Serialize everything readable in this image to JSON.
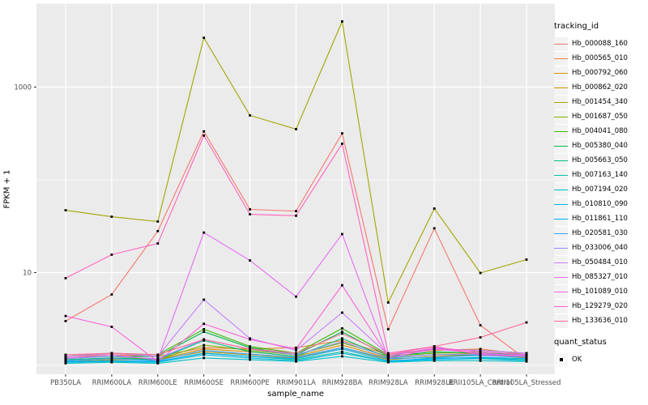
{
  "chart": {
    "x_axis_title": "sample_name",
    "y_axis_title": "FPKM + 1",
    "panel_bg": "#EBEBEB",
    "grid_color": "#FFFFFF",
    "tick_label_color": "#4D4D4D",
    "point_color": "#000000",
    "point_shape": "filled-square"
  },
  "legend": {
    "tracking_title": "tracking_id",
    "quant_title": "quant_status",
    "quant_items": [
      {
        "label": "OK"
      }
    ],
    "key_bg": "#F2F2F2"
  },
  "chart_data": {
    "type": "line",
    "title": "",
    "xlabel": "sample_name",
    "ylabel": "FPKM + 1",
    "y_scale": "log10",
    "ylim": [
      1.0,
      6000
    ],
    "y_major_breaks": [
      10,
      1000
    ],
    "y_minor_breaks": [
      1,
      100
    ],
    "grid": true,
    "legend_position": "right",
    "categories": [
      "PB350LA",
      "RRIM600LA",
      "RRIM600LE",
      "RRIM600SE",
      "RRIM600PE",
      "RRIM901LA",
      "RRIM928BA",
      "RRIM928LA",
      "RRIM928LE",
      "RRII105LA_Control",
      "RRII105LA_Stressed"
    ],
    "series": [
      {
        "name": "Hb_000088_160",
        "color": "#F8766D",
        "values": [
          3.0,
          5.8,
          28,
          333,
          48,
          46,
          317,
          2.45,
          30,
          2.7,
          1.15
        ]
      },
      {
        "name": "Hb_000565_010",
        "color": "#EB8335",
        "values": [
          1.25,
          1.3,
          1.25,
          1.55,
          1.5,
          1.55,
          1.85,
          1.3,
          1.45,
          1.5,
          1.3
        ]
      },
      {
        "name": "Hb_000792_060",
        "color": "#D89000",
        "values": [
          1.15,
          1.2,
          1.15,
          1.5,
          1.4,
          1.25,
          1.65,
          1.2,
          1.3,
          1.35,
          1.25
        ]
      },
      {
        "name": "Hb_000862_020",
        "color": "#C09B00",
        "values": [
          1.1,
          1.15,
          1.15,
          1.4,
          1.3,
          1.2,
          1.55,
          1.15,
          1.25,
          1.3,
          1.2
        ]
      },
      {
        "name": "Hb_001454_340",
        "color": "#A3A500",
        "values": [
          47,
          40,
          35.5,
          3400,
          495,
          352,
          5100,
          4.75,
          49,
          9.9,
          13.8
        ]
      },
      {
        "name": "Hb_001687_050",
        "color": "#7CAE00",
        "values": [
          1.2,
          1.25,
          1.15,
          1.65,
          1.45,
          1.3,
          1.75,
          1.25,
          1.35,
          1.4,
          1.3
        ]
      },
      {
        "name": "Hb_004041_080",
        "color": "#39B600",
        "values": [
          1.25,
          1.35,
          1.3,
          2.45,
          1.6,
          1.35,
          2.5,
          1.3,
          1.5,
          1.45,
          1.35
        ]
      },
      {
        "name": "Hb_005380_040",
        "color": "#00BB4E",
        "values": [
          1.2,
          1.25,
          1.25,
          2.3,
          1.55,
          1.3,
          2.3,
          1.25,
          1.4,
          1.35,
          1.3
        ]
      },
      {
        "name": "Hb_005663_050",
        "color": "#00BF7D",
        "values": [
          1.15,
          1.2,
          1.15,
          1.85,
          1.4,
          1.25,
          1.95,
          1.2,
          1.3,
          1.3,
          1.25
        ]
      },
      {
        "name": "Hb_007163_140",
        "color": "#00C1A3",
        "values": [
          1.1,
          1.1,
          1.1,
          1.35,
          1.25,
          1.15,
          1.4,
          1.1,
          1.2,
          1.2,
          1.15
        ]
      },
      {
        "name": "Hb_007194_020",
        "color": "#00BFC4",
        "values": [
          1.05,
          1.08,
          1.05,
          1.2,
          1.15,
          1.1,
          1.25,
          1.08,
          1.12,
          1.12,
          1.1
        ]
      },
      {
        "name": "Hb_010810_090",
        "color": "#00BAE0",
        "values": [
          1.08,
          1.1,
          1.08,
          1.3,
          1.2,
          1.12,
          1.35,
          1.1,
          1.15,
          1.18,
          1.12
        ]
      },
      {
        "name": "Hb_011861_110",
        "color": "#00B0F6",
        "values": [
          1.1,
          1.12,
          1.1,
          1.35,
          1.25,
          1.18,
          1.5,
          1.12,
          1.18,
          1.22,
          1.18
        ]
      },
      {
        "name": "Hb_020581_030",
        "color": "#35A2FF",
        "values": [
          1.12,
          1.18,
          1.12,
          1.45,
          1.32,
          1.22,
          1.55,
          1.18,
          1.22,
          1.28,
          1.22
        ]
      },
      {
        "name": "Hb_033006_040",
        "color": "#9590FF",
        "values": [
          1.18,
          1.25,
          1.18,
          1.9,
          1.5,
          1.3,
          1.8,
          1.22,
          1.3,
          1.32,
          1.28
        ]
      },
      {
        "name": "Hb_050484_010",
        "color": "#C77CFF",
        "values": [
          1.25,
          1.35,
          1.25,
          5.1,
          1.95,
          1.45,
          3.7,
          1.3,
          1.5,
          1.45,
          1.35
        ]
      },
      {
        "name": "Hb_085327_010",
        "color": "#E76BF3",
        "values": [
          1.2,
          1.3,
          1.15,
          27,
          13.5,
          5.5,
          26,
          1.2,
          1.5,
          1.35,
          1.25
        ]
      },
      {
        "name": "Hb_101089_010",
        "color": "#FA62DB",
        "values": [
          3.4,
          2.6,
          1.1,
          2.8,
          1.9,
          1.5,
          7.3,
          1.25,
          1.55,
          1.4,
          1.3
        ]
      },
      {
        "name": "Hb_129279_020",
        "color": "#FF62BC",
        "values": [
          8.7,
          15.6,
          20.6,
          300,
          42.5,
          41,
          245,
          1.35,
          1.6,
          1.3,
          1.25
        ]
      },
      {
        "name": "Hb_133636_010",
        "color": "#FF6A98",
        "values": [
          1.3,
          1.35,
          1.3,
          1.9,
          1.5,
          1.35,
          2.2,
          1.3,
          1.6,
          2.0,
          2.9
        ]
      }
    ]
  }
}
